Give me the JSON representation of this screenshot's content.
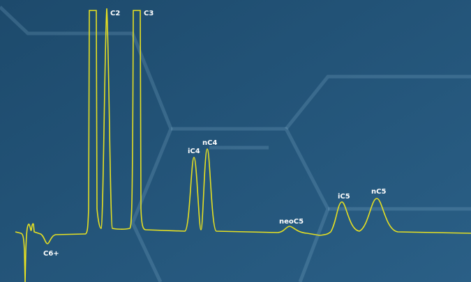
{
  "peaks": [
    {
      "label": "C6+"
    },
    {
      "label": "C2"
    },
    {
      "label": "C3"
    },
    {
      "label": "iC4"
    },
    {
      "label": "nC4"
    },
    {
      "label": "neoC5"
    },
    {
      "label": "iC5"
    },
    {
      "label": "nC5"
    }
  ]
}
